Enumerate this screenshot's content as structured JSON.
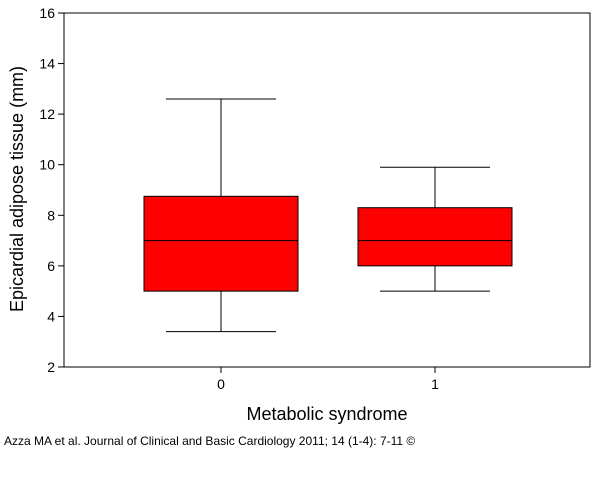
{
  "chart_data": {
    "type": "box",
    "ylabel": "Epicardial adipose tissue (mm)",
    "xlabel": "Metabolic syndrome",
    "ylim": [
      2,
      16
    ],
    "yticks": [
      2,
      4,
      6,
      8,
      10,
      12,
      14,
      16
    ],
    "categories": [
      "0",
      "1"
    ],
    "boxes": [
      {
        "category": "0",
        "whisker_low": 3.4,
        "q1": 5.0,
        "median": 7.0,
        "q3": 8.75,
        "whisker_high": 12.6
      },
      {
        "category": "1",
        "whisker_low": 5.0,
        "q1": 6.0,
        "median": 7.0,
        "q3": 8.3,
        "whisker_high": 9.9
      }
    ],
    "box_color": "#ff0000",
    "grid": false
  },
  "caption": "Azza MA et al. Journal of Clinical and Basic Cardiology 2011; 14 (1-4): 7-11 ©"
}
